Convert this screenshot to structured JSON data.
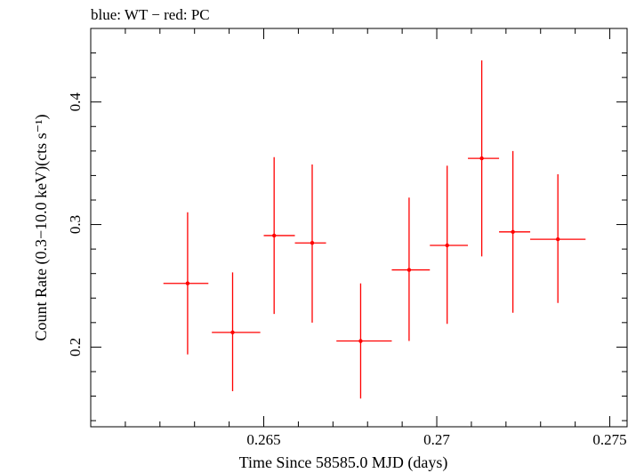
{
  "chart_data": {
    "type": "scatter",
    "title": "blue: WT − red: PC",
    "xlabel": "Time Since 58585.0 MJD (days)",
    "ylabel": "Count Rate (0.3−10.0 keV)(cts s⁻¹)",
    "xlim": [
      0.26,
      0.2755
    ],
    "ylim": [
      0.135,
      0.46
    ],
    "xticks": [
      0.265,
      0.27,
      0.275
    ],
    "xtick_labels": [
      "0.265",
      "0.27",
      "0.275"
    ],
    "yticks": [
      0.2,
      0.3,
      0.4
    ],
    "ytick_labels": [
      "0.2",
      "0.3",
      "0.4"
    ],
    "grid": false,
    "series": [
      {
        "name": "PC",
        "color": "#ff0000",
        "points": [
          {
            "x": 0.2628,
            "y": 0.252,
            "xlo": 0.2621,
            "xhi": 0.2634,
            "ylo": 0.194,
            "yhi": 0.31
          },
          {
            "x": 0.2641,
            "y": 0.212,
            "xlo": 0.2635,
            "xhi": 0.2649,
            "ylo": 0.164,
            "yhi": 0.261
          },
          {
            "x": 0.2653,
            "y": 0.291,
            "xlo": 0.265,
            "xhi": 0.2659,
            "ylo": 0.227,
            "yhi": 0.355
          },
          {
            "x": 0.2664,
            "y": 0.285,
            "xlo": 0.2659,
            "xhi": 0.2668,
            "ylo": 0.22,
            "yhi": 0.349
          },
          {
            "x": 0.2678,
            "y": 0.205,
            "xlo": 0.2671,
            "xhi": 0.2687,
            "ylo": 0.158,
            "yhi": 0.252
          },
          {
            "x": 0.2692,
            "y": 0.263,
            "xlo": 0.2687,
            "xhi": 0.2698,
            "ylo": 0.205,
            "yhi": 0.322
          },
          {
            "x": 0.2703,
            "y": 0.283,
            "xlo": 0.2698,
            "xhi": 0.2709,
            "ylo": 0.219,
            "yhi": 0.348
          },
          {
            "x": 0.2713,
            "y": 0.354,
            "xlo": 0.2709,
            "xhi": 0.2718,
            "ylo": 0.274,
            "yhi": 0.434
          },
          {
            "x": 0.2722,
            "y": 0.294,
            "xlo": 0.2718,
            "xhi": 0.2727,
            "ylo": 0.228,
            "yhi": 0.36
          },
          {
            "x": 0.2735,
            "y": 0.288,
            "xlo": 0.2727,
            "xhi": 0.2743,
            "ylo": 0.236,
            "yhi": 0.341
          }
        ]
      }
    ]
  }
}
